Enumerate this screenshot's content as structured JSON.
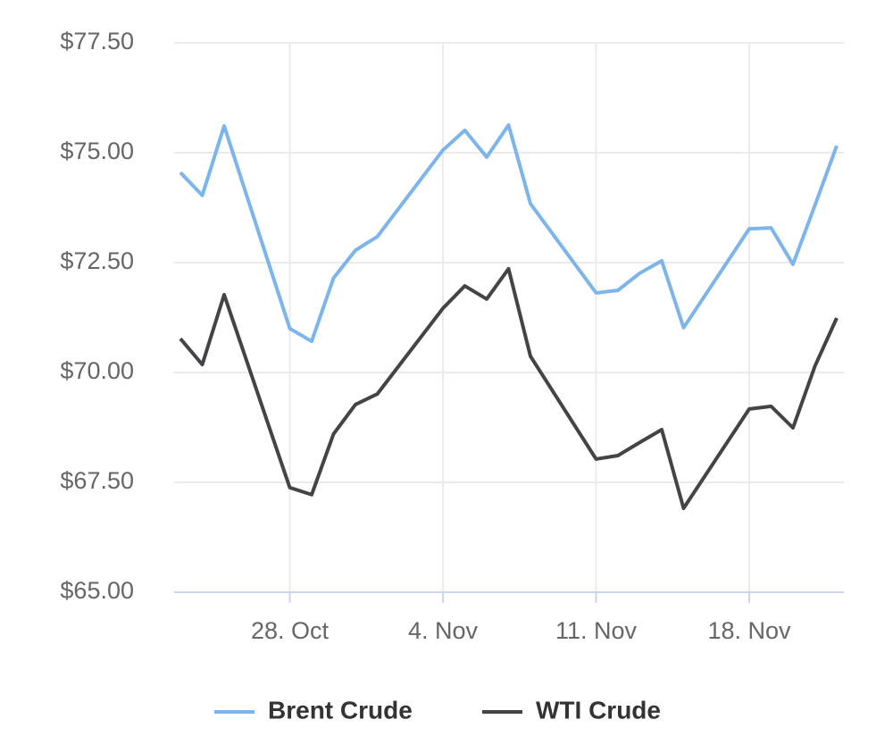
{
  "chart_data": {
    "type": "line",
    "x": [
      "23. Oct",
      "24. Oct",
      "25. Oct",
      "28. Oct",
      "29. Oct",
      "30. Oct",
      "31. Oct",
      "1. Nov",
      "4. Nov",
      "5. Nov",
      "6. Nov",
      "7. Nov",
      "8. Nov",
      "11. Nov",
      "12. Nov",
      "13. Nov",
      "14. Nov",
      "15. Nov",
      "18. Nov",
      "19. Nov",
      "20. Nov",
      "21. Nov",
      "22. Nov"
    ],
    "series": [
      {
        "name": "Brent Crude",
        "color": "#7cb5ec",
        "values": [
          74.55,
          74.03,
          75.61,
          71.0,
          70.71,
          72.15,
          72.78,
          73.09,
          75.06,
          75.51,
          74.9,
          75.63,
          73.84,
          71.81,
          71.87,
          72.26,
          72.54,
          71.02,
          73.27,
          73.29,
          72.46,
          73.8,
          75.16
        ]
      },
      {
        "name": "WTI Crude",
        "color": "#434348",
        "values": [
          70.77,
          70.18,
          71.77,
          67.38,
          67.22,
          68.6,
          69.27,
          69.51,
          71.46,
          71.97,
          71.67,
          72.36,
          70.37,
          68.03,
          68.11,
          68.41,
          68.7,
          66.91,
          69.17,
          69.23,
          68.74,
          70.14,
          71.24
        ]
      }
    ],
    "xticks": [
      "28. Oct",
      "4. Nov",
      "11. Nov",
      "18. Nov"
    ],
    "ylim": [
      65,
      77.5
    ],
    "yticks": [
      {
        "value": 65,
        "label": "$65.00"
      },
      {
        "value": 67.5,
        "label": "$67.50"
      },
      {
        "value": 70,
        "label": "$70.00"
      },
      {
        "value": 72.5,
        "label": "$72.50"
      },
      {
        "value": 75,
        "label": "$75.00"
      },
      {
        "value": 77.5,
        "label": "$77.50"
      }
    ],
    "grid": true
  }
}
